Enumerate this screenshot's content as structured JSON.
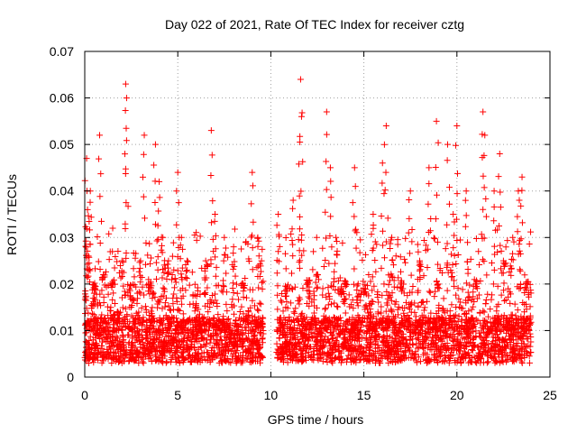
{
  "chart_data": {
    "type": "scatter",
    "title": "Day 022 of 2021, Rate Of TEC Index for receiver cztg",
    "xlabel": "GPS time / hours",
    "ylabel": "ROTI / TECUs",
    "xlim": [
      0,
      25
    ],
    "ylim": [
      0,
      0.07
    ],
    "x_ticks": [
      0,
      5,
      10,
      15,
      20,
      25
    ],
    "x_tick_labels": [
      "0",
      "5",
      "10",
      "15",
      "20",
      "25"
    ],
    "y_ticks": [
      0,
      0.01,
      0.02,
      0.03,
      0.04,
      0.05,
      0.06,
      0.07
    ],
    "y_tick_labels": [
      "0",
      "0.01",
      "0.02",
      "0.03",
      "0.04",
      "0.05",
      "0.06",
      "0.07"
    ],
    "grid": true,
    "marker": "+",
    "color": "#ff0000",
    "data_gap_hours": [
      9.6,
      10.3
    ],
    "series": [
      {
        "name": "ROTI",
        "x": [
          0.1,
          0.15,
          0.2,
          0.3,
          0.5,
          0.8,
          1.0,
          1.5,
          2.0,
          2.2,
          2.25,
          2.5,
          3.0,
          3.2,
          3.5,
          3.8,
          4.0,
          4.2,
          4.5,
          5.0,
          5.2,
          5.5,
          6.0,
          6.5,
          6.8,
          7.0,
          7.5,
          8.0,
          8.5,
          9.0,
          9.3,
          9.5,
          10.4,
          10.8,
          11.2,
          11.6,
          11.65,
          12.0,
          12.5,
          13.0,
          13.2,
          13.5,
          14.0,
          14.5,
          15.0,
          15.5,
          16.0,
          16.2,
          16.5,
          17.0,
          17.5,
          18.0,
          18.5,
          18.9,
          19.0,
          19.5,
          19.8,
          20.0,
          20.5,
          21.0,
          21.4,
          21.5,
          22.0,
          22.3,
          22.5,
          23.0,
          23.3,
          23.5,
          23.8
        ],
        "y": [
          0.047,
          0.036,
          0.026,
          0.04,
          0.018,
          0.052,
          0.022,
          0.02,
          0.025,
          0.063,
          0.06,
          0.015,
          0.025,
          0.052,
          0.02,
          0.05,
          0.042,
          0.03,
          0.025,
          0.044,
          0.03,
          0.025,
          0.015,
          0.025,
          0.053,
          0.035,
          0.03,
          0.028,
          0.02,
          0.044,
          0.03,
          0.025,
          0.035,
          0.015,
          0.038,
          0.064,
          0.056,
          0.02,
          0.022,
          0.057,
          0.045,
          0.03,
          0.02,
          0.045,
          0.018,
          0.035,
          0.046,
          0.054,
          0.03,
          0.02,
          0.04,
          0.025,
          0.045,
          0.055,
          0.02,
          0.05,
          0.035,
          0.054,
          0.04,
          0.02,
          0.057,
          0.052,
          0.04,
          0.048,
          0.025,
          0.03,
          0.04,
          0.043,
          0.02
        ]
      }
    ],
    "baseline_band": {
      "y_low": 0.003,
      "y_mid": 0.01,
      "y_high": 0.02
    }
  }
}
